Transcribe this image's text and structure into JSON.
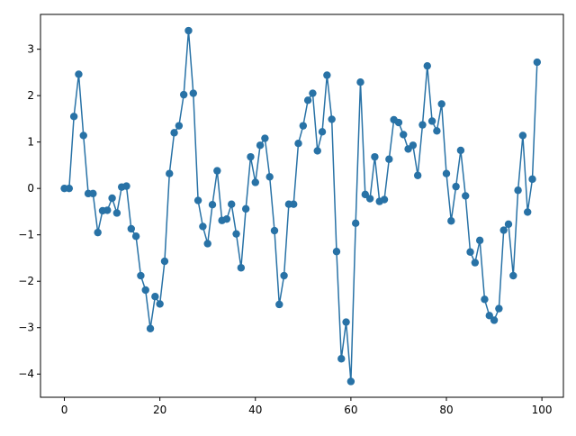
{
  "chart_data": {
    "type": "line",
    "title": "",
    "xlabel": "",
    "ylabel": "",
    "xlim": [
      -5,
      104.5
    ],
    "ylim": [
      -4.5,
      3.75
    ],
    "xticks": [
      0,
      20,
      40,
      60,
      80,
      100
    ],
    "yticks": [
      3,
      2,
      1,
      0,
      -1,
      -2,
      -3,
      -4
    ],
    "xtick_labels": [
      "0",
      "20",
      "40",
      "60",
      "80",
      "100"
    ],
    "ytick_labels": [
      "3",
      "2",
      "1",
      "0",
      "−1",
      "−2",
      "−3",
      "−4"
    ],
    "grid": false,
    "series": [
      {
        "color": "#2872a6",
        "marker": "circle",
        "x": [
          0,
          1,
          2,
          3,
          4,
          5,
          6,
          7,
          8,
          9,
          10,
          11,
          12,
          13,
          14,
          15,
          16,
          17,
          18,
          19,
          20,
          21,
          22,
          23,
          24,
          25,
          26,
          27,
          28,
          29,
          30,
          31,
          32,
          33,
          34,
          35,
          36,
          37,
          38,
          39,
          40,
          41,
          42,
          43,
          44,
          45,
          46,
          47,
          48,
          49,
          50,
          51,
          52,
          53,
          54,
          55,
          56,
          57,
          58,
          59,
          60,
          61,
          62,
          63,
          64,
          65,
          66,
          67,
          68,
          69,
          70,
          71,
          72,
          73,
          74,
          75,
          76,
          77,
          78,
          79,
          80,
          81,
          82,
          83,
          84,
          85,
          86,
          87,
          88,
          89,
          90,
          91,
          92,
          93,
          94,
          95,
          96,
          97,
          98,
          99
        ],
        "y": [
          0.0,
          0.0,
          1.55,
          2.46,
          1.14,
          -0.11,
          -0.11,
          -0.95,
          -0.48,
          -0.47,
          -0.21,
          -0.53,
          0.03,
          0.05,
          -0.87,
          -1.03,
          -1.88,
          -2.19,
          -3.02,
          -2.33,
          -2.49,
          -1.57,
          0.32,
          1.2,
          1.35,
          2.02,
          3.4,
          2.05,
          -0.26,
          -0.82,
          -1.19,
          -0.35,
          0.38,
          -0.69,
          -0.66,
          -0.34,
          -0.98,
          -1.71,
          -0.44,
          0.68,
          0.13,
          0.93,
          1.08,
          0.25,
          -0.91,
          -2.5,
          -1.88,
          -0.34,
          -0.34,
          0.97,
          1.35,
          1.9,
          2.05,
          0.81,
          1.22,
          2.44,
          1.49,
          -1.36,
          -3.67,
          -2.88,
          -4.16,
          -0.75,
          2.29,
          -0.13,
          -0.22,
          0.68,
          -0.28,
          -0.24,
          0.63,
          1.48,
          1.42,
          1.16,
          0.85,
          0.93,
          0.28,
          1.37,
          2.64,
          1.45,
          1.24,
          1.82,
          0.32,
          -0.7,
          0.04,
          0.82,
          -0.16,
          -1.37,
          -1.6,
          -1.12,
          -2.39,
          -2.74,
          -2.84,
          -2.59,
          -0.9,
          -0.77,
          -1.88,
          -0.04,
          1.14,
          -0.51,
          0.2,
          2.72
        ]
      }
    ]
  }
}
